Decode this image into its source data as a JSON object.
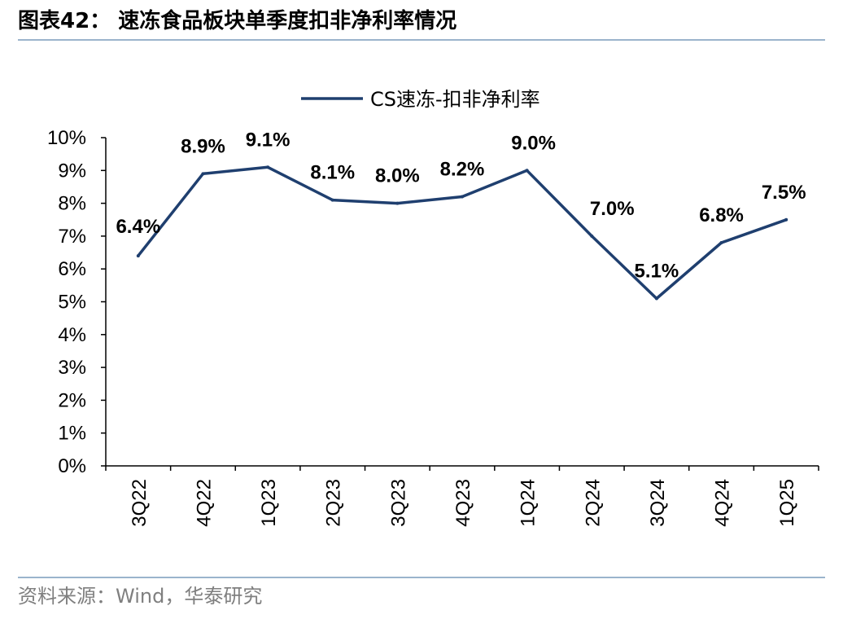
{
  "header": {
    "title": "图表42：  速冻食品板块单季度扣非净利率情况"
  },
  "footer": {
    "source": "资料来源：Wind，华泰研究"
  },
  "colors": {
    "series_line": "#1f3f6f",
    "axis": "#000000",
    "rule": "#9bb4cc"
  },
  "chart_data": {
    "type": "line",
    "title": "",
    "xlabel": "",
    "ylabel": "",
    "categories": [
      "3Q22",
      "4Q22",
      "1Q23",
      "2Q23",
      "3Q23",
      "4Q23",
      "1Q24",
      "2Q24",
      "3Q24",
      "4Q24",
      "1Q25"
    ],
    "series": [
      {
        "name": "CS速冻-扣非净利率",
        "values": [
          6.4,
          8.9,
          9.1,
          8.1,
          8.0,
          8.2,
          9.0,
          7.0,
          5.1,
          6.8,
          7.5
        ],
        "data_labels": [
          "6.4%",
          "8.9%",
          "9.1%",
          "8.1%",
          "8.0%",
          "8.2%",
          "9.0%",
          "7.0%",
          "5.1%",
          "6.8%",
          "7.5%"
        ]
      }
    ],
    "ylim": [
      0,
      10
    ],
    "y_ticks": [
      "0%",
      "1%",
      "2%",
      "3%",
      "4%",
      "5%",
      "6%",
      "7%",
      "8%",
      "9%",
      "10%"
    ],
    "grid": false,
    "legend": "top-center"
  }
}
